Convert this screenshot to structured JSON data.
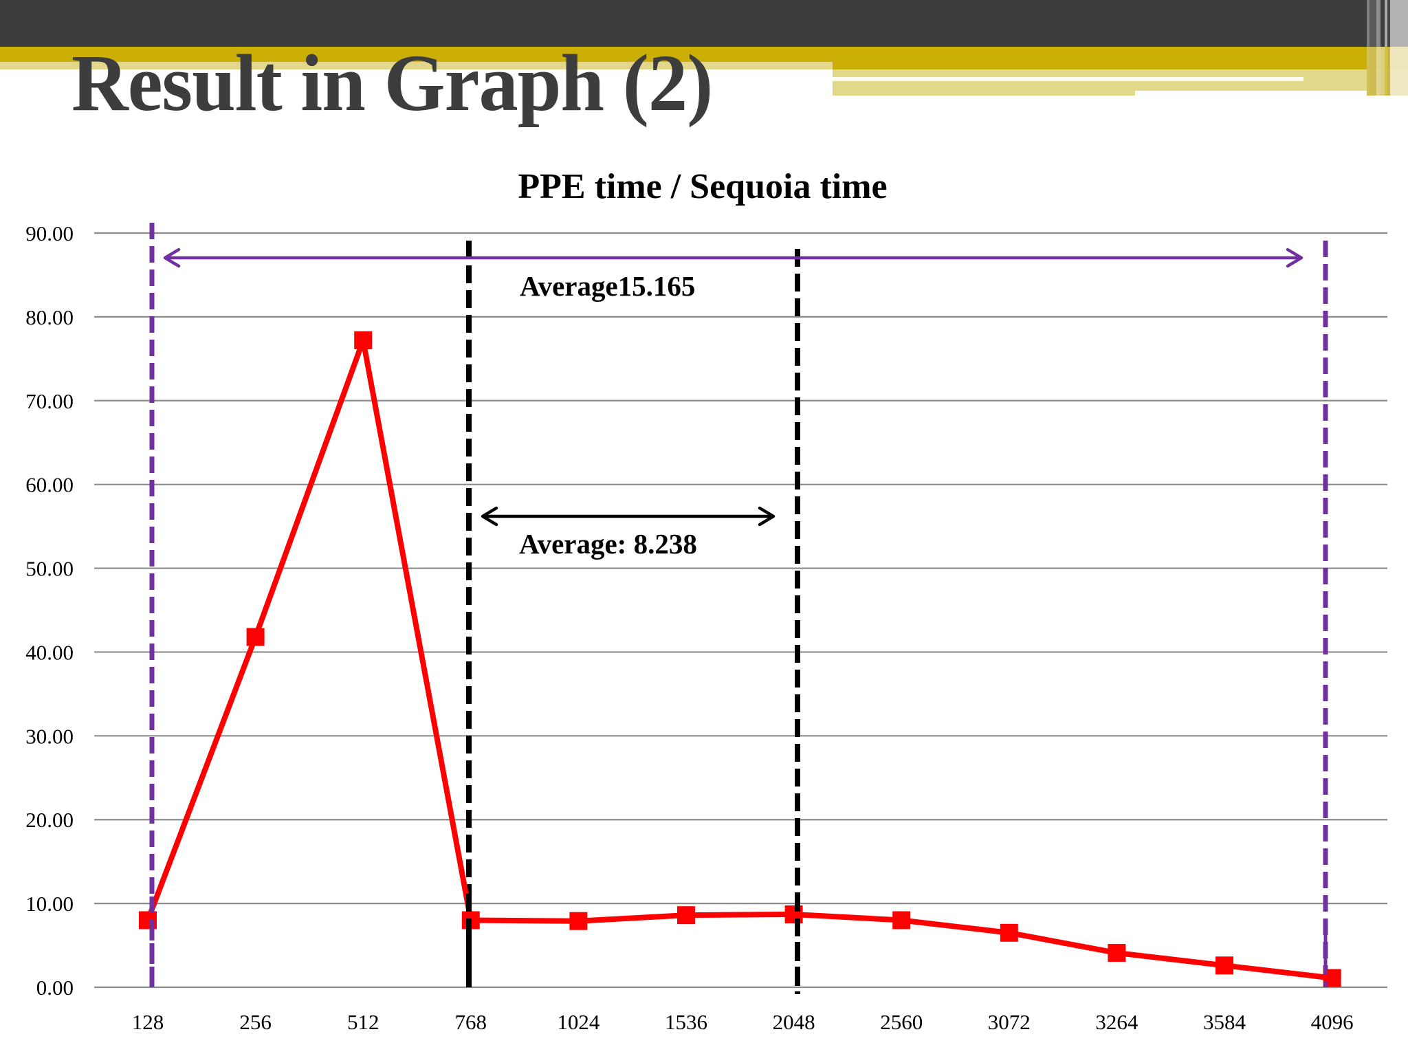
{
  "slide": {
    "title": "Result in Graph (2)",
    "theme_colors": {
      "header_dark": "#3c3c3c",
      "header_gold": "#ccaf06",
      "header_pale_gold": "#e1d88a"
    }
  },
  "chart_data": {
    "type": "line",
    "title": "PPE time / Sequoia time",
    "xlabel": "",
    "ylabel": "",
    "categories": [
      "128",
      "256",
      "512",
      "768",
      "1024",
      "1536",
      "2048",
      "2560",
      "3072",
      "3264",
      "3584",
      "4096"
    ],
    "series": [
      {
        "name": "PPE time / Sequoia time",
        "color": "#ff0000",
        "marker": "square",
        "values": [
          8.0,
          41.8,
          77.2,
          8.0,
          7.9,
          8.6,
          8.7,
          8.0,
          6.5,
          4.1,
          2.6,
          1.1
        ]
      }
    ],
    "ylim": [
      0,
      90
    ],
    "yticks": [
      "0.00",
      "10.00",
      "20.00",
      "30.00",
      "40.00",
      "50.00",
      "60.00",
      "70.00",
      "80.00",
      "90.00"
    ],
    "grid": true,
    "legend": "none",
    "annotations": [
      {
        "text": "Average15.165",
        "type": "double-arrow",
        "color": "#7030a0",
        "from": "128",
        "to": "4096",
        "bounds_style": "purple-dashed-vertical"
      },
      {
        "text": "Average: 8.238",
        "type": "double-arrow",
        "color": "#000000",
        "from": "768",
        "to": "2048",
        "bounds_style": "black-dashed-vertical"
      }
    ]
  }
}
